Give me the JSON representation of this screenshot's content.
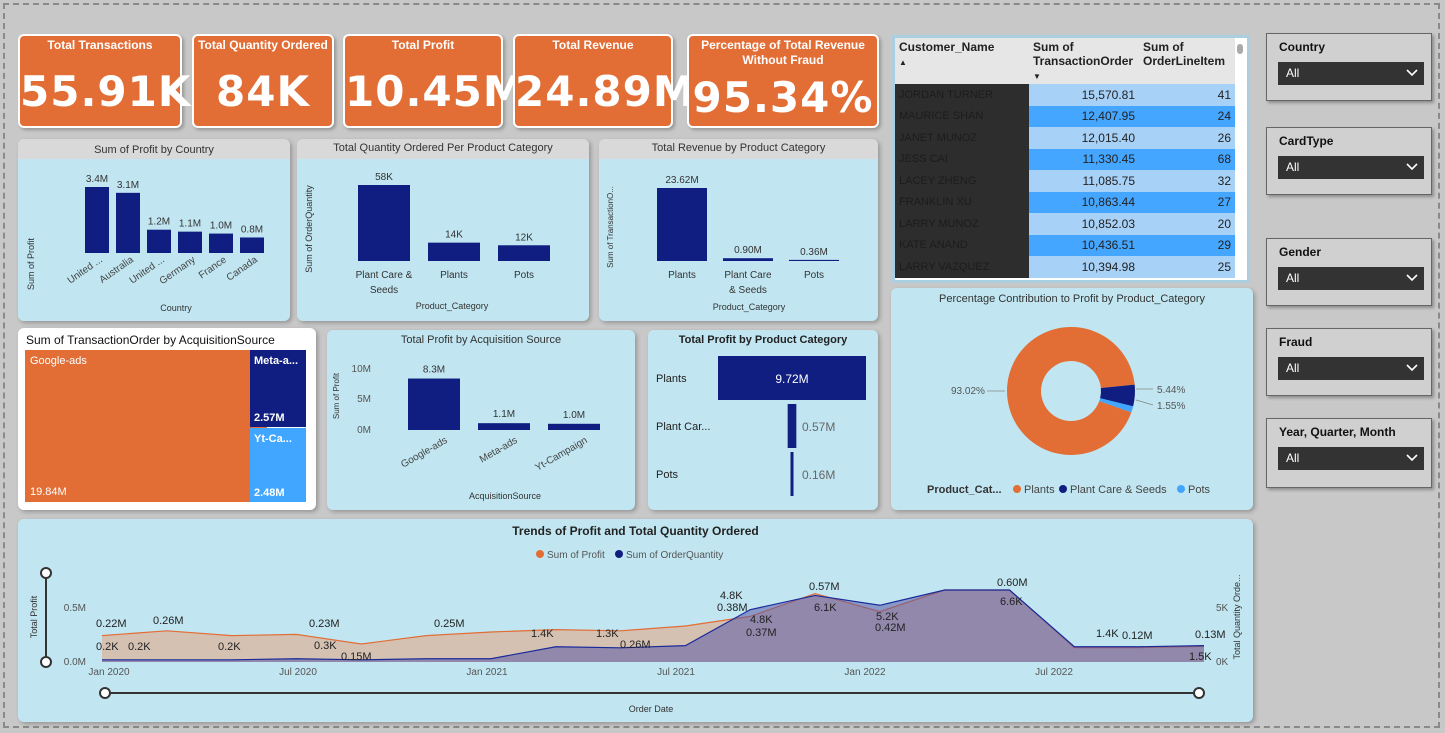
{
  "kpis": [
    {
      "title": "Total Transactions",
      "value": "55.91K"
    },
    {
      "title": "Total Quantity Ordered",
      "value": "84K"
    },
    {
      "title": "Total Profit",
      "value": "10.45M"
    },
    {
      "title": "Total Revenue",
      "value": "24.89M"
    },
    {
      "title": "Percentage of Total Revenue Without Fraud",
      "value": "95.34%"
    }
  ],
  "colors": {
    "kpi": "#e26d35",
    "navy": "#0f1e80",
    "orange": "#e26d35",
    "lightblue": "#41a6ff",
    "card": "#c1e6f1"
  },
  "profit_by_country": {
    "title": "Sum of Profit by Country",
    "xlabel": "Country",
    "ylabel": "Sum of Profit",
    "categories": [
      "United ...",
      "Australia",
      "United ...",
      "Germany",
      "France",
      "Canada"
    ],
    "labels": [
      "3.4M",
      "3.1M",
      "1.2M",
      "1.1M",
      "1.0M",
      "0.8M"
    ],
    "values": [
      3.4,
      3.1,
      1.2,
      1.1,
      1.0,
      0.8
    ]
  },
  "qty_by_category": {
    "title": "Total Quantity Ordered Per Product Category",
    "xlabel": "Product_Category",
    "ylabel": "Sum of OrderQuantity",
    "categories": [
      "Plant Care & Seeds",
      "Plants",
      "Pots"
    ],
    "labels": [
      "58K",
      "14K",
      "12K"
    ],
    "values": [
      58,
      14,
      12
    ]
  },
  "revenue_by_category": {
    "title": "Total Revenue by Product Category",
    "xlabel": "Product_Category",
    "ylabel": "Sum of TransactionO...",
    "categories": [
      "Plants",
      "Plant Care & Seeds",
      "Pots"
    ],
    "labels": [
      "23.62M",
      "0.90M",
      "0.36M"
    ],
    "values": [
      23.62,
      0.9,
      0.36
    ]
  },
  "treemap": {
    "title": "Sum of TransactionOrder by AcquisitionSource",
    "items": [
      {
        "name": "Google-ads",
        "value": "19.84M"
      },
      {
        "name": "Meta-a...",
        "value": "2.57M"
      },
      {
        "name": "Yt-Ca...",
        "value": "2.48M"
      }
    ]
  },
  "profit_by_source": {
    "title": "Total Profit by Acquisition Source",
    "xlabel": "AcquisitionSource",
    "ylabel": "Sum of Profit",
    "categories": [
      "Google-ads",
      "Meta-ads",
      "Yt-Campaign"
    ],
    "labels": [
      "8.3M",
      "1.1M",
      "1.0M"
    ],
    "values": [
      8.3,
      1.1,
      1.0
    ],
    "yticks": [
      "10M",
      "5M",
      "0M"
    ]
  },
  "profit_by_category": {
    "title": "Total Profit by Product Category",
    "categories": [
      "Plants",
      "Plant Car...",
      "Pots"
    ],
    "labels": [
      "9.72M",
      "0.57M",
      "0.16M"
    ],
    "values": [
      9.72,
      0.57,
      0.16
    ]
  },
  "customer_table": {
    "headers": [
      "Customer_Name",
      "Sum of TransactionOrder",
      "Sum of OrderLineItem"
    ],
    "rows": [
      {
        "name": "JORDAN TURNER",
        "order": "15,570.81",
        "items": "41"
      },
      {
        "name": "MAURICE SHAN",
        "order": "12,407.95",
        "items": "24"
      },
      {
        "name": "JANET MUNOZ",
        "order": "12,015.40",
        "items": "26"
      },
      {
        "name": "JESS CAI",
        "order": "11,330.45",
        "items": "68"
      },
      {
        "name": "LACEY ZHENG",
        "order": "11,085.75",
        "items": "32"
      },
      {
        "name": "FRANKLIN XU",
        "order": "10,863.44",
        "items": "27"
      },
      {
        "name": "LARRY MUNOZ",
        "order": "10,852.03",
        "items": "20"
      },
      {
        "name": "KATE ANAND",
        "order": "10,436.51",
        "items": "29"
      },
      {
        "name": "LARRY VAZQUEZ",
        "order": "10,394.98",
        "items": "25"
      }
    ]
  },
  "donut": {
    "title": "Percentage Contribution to Profit by Product_Category",
    "legend_title": "Product_Cat...",
    "slices": [
      {
        "name": "Plants",
        "value": 93.02,
        "label": "93.02%"
      },
      {
        "name": "Plant Care & Seeds",
        "value": 5.44,
        "label": "5.44%"
      },
      {
        "name": "Pots",
        "value": 1.55,
        "label": "1.55%"
      }
    ]
  },
  "slicers": [
    {
      "label": "Country",
      "value": "All"
    },
    {
      "label": "CardType",
      "value": "All"
    },
    {
      "label": "Gender",
      "value": "All"
    },
    {
      "label": "Fraud",
      "value": "All"
    },
    {
      "label": "Year, Quarter, Month",
      "value": "All"
    }
  ],
  "trend": {
    "title": "Trends of Profit and Total Quantity Ordered",
    "legend": [
      "Sum of Profit",
      "Sum of OrderQuantity"
    ],
    "xlabel": "Order Date",
    "ylabel_left": "Total Profit",
    "ylabel_right": "Total Quantity Orde...",
    "xticks": [
      "Jan 2020",
      "Jul 2020",
      "Jan 2021",
      "Jul 2021",
      "Jan 2022",
      "Jul 2022"
    ],
    "yticks_left": [
      "0.5M",
      "0.0M"
    ],
    "yticks_right": [
      "5K",
      "0K"
    ],
    "annotations": [
      "0.22M",
      "0.2K",
      "0.2K",
      "0.26M",
      "0.2K",
      "0.23M",
      "0.3K",
      "0.15M",
      "0.25M",
      "1.4K",
      "1.3K",
      "0.26M",
      "4.8K",
      "0.38M",
      "4.8K",
      "0.37M",
      "0.57M",
      "6.1K",
      "5.2K",
      "0.42M",
      "0.60M",
      "6.6K",
      "1.4K",
      "0.12M",
      "0.13M",
      "1.5K"
    ]
  },
  "chart_data": [
    {
      "type": "bar",
      "title": "Sum of Profit by Country",
      "categories": [
        "United ...",
        "Australia",
        "United ...",
        "Germany",
        "France",
        "Canada"
      ],
      "values": [
        3.4,
        3.1,
        1.2,
        1.1,
        1.0,
        0.8
      ],
      "xlabel": "Country",
      "ylabel": "Sum of Profit"
    },
    {
      "type": "bar",
      "title": "Total Quantity Ordered Per Product Category",
      "categories": [
        "Plant Care & Seeds",
        "Plants",
        "Pots"
      ],
      "values": [
        58,
        14,
        12
      ],
      "xlabel": "Product_Category",
      "ylabel": "Sum of OrderQuantity"
    },
    {
      "type": "bar",
      "title": "Total Revenue by Product Category",
      "categories": [
        "Plants",
        "Plant Care & Seeds",
        "Pots"
      ],
      "values": [
        23.62,
        0.9,
        0.36
      ],
      "xlabel": "Product_Category"
    },
    {
      "type": "bar",
      "title": "Total Profit by Acquisition Source",
      "categories": [
        "Google-ads",
        "Meta-ads",
        "Yt-Campaign"
      ],
      "values": [
        8.3,
        1.1,
        1.0
      ],
      "xlabel": "AcquisitionSource",
      "ylabel": "Sum of Profit",
      "ylim": [
        0,
        10
      ]
    },
    {
      "type": "bar",
      "title": "Total Profit by Product Category",
      "categories": [
        "Plants",
        "Plant Car...",
        "Pots"
      ],
      "values": [
        9.72,
        0.57,
        0.16
      ]
    },
    {
      "type": "pie",
      "title": "Percentage Contribution to Profit by Product_Category",
      "categories": [
        "Plants",
        "Plant Care & Seeds",
        "Pots"
      ],
      "values": [
        93.02,
        5.44,
        1.55
      ]
    },
    {
      "type": "area",
      "title": "Trends of Profit and Total Quantity Ordered",
      "x": [
        "Jan 2020",
        "Mar 2020",
        "May 2020",
        "Jul 2020",
        "Sep 2020",
        "Nov 2020",
        "Jan 2021",
        "Mar 2021",
        "May 2021",
        "Jul 2021",
        "Sep 2021",
        "Nov 2021",
        "Jan 2022",
        "Mar 2022",
        "May 2022",
        "Jul 2022",
        "Sep 2022",
        "Nov 2022"
      ],
      "series": [
        {
          "name": "Sum of Profit",
          "values": [
            0.22,
            0.26,
            0.22,
            0.23,
            0.15,
            0.22,
            0.25,
            0.27,
            0.26,
            0.3,
            0.38,
            0.57,
            0.42,
            0.6,
            0.6,
            0.12,
            0.12,
            0.13
          ]
        },
        {
          "name": "Sum of OrderQuantity",
          "values": [
            0.2,
            0.2,
            0.2,
            0.3,
            0.2,
            0.3,
            0.3,
            1.4,
            1.3,
            1.5,
            4.8,
            6.1,
            5.2,
            6.6,
            6.6,
            1.4,
            1.4,
            1.5
          ]
        }
      ]
    }
  ]
}
